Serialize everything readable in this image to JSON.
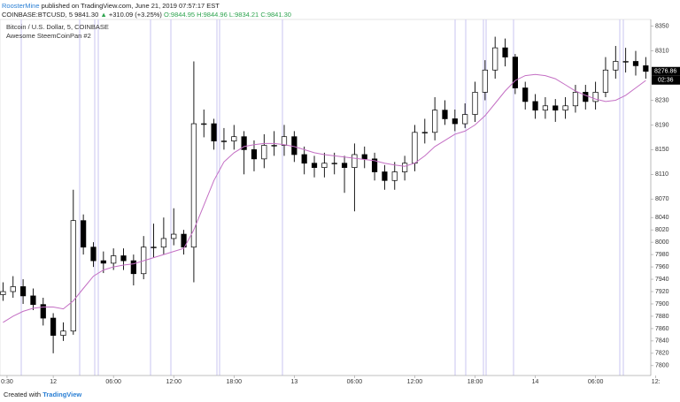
{
  "header": {
    "author": "RoosterMine",
    "published": "published on TradingView.com, June 21, 2019 07:57:17 EST",
    "symbol": "COINBASE:BTCUSD, 5",
    "last": "9841.30",
    "arrow": "▲",
    "change": "+310.09 (+3.25%)",
    "o": "O:9844.95",
    "h": "H:9844.96",
    "l": "L:9834.21",
    "c": "C:9841.30"
  },
  "chart_data": {
    "type": "candlestick",
    "title": "Bitcoin / U.S. Dollar, 5, COINBASE",
    "subtitle": "Awesome SteemCoinPan #2",
    "x": [
      -5,
      -4,
      -3,
      -2,
      -1,
      0,
      1,
      2,
      3,
      4,
      5,
      6,
      7,
      8,
      9,
      10,
      11,
      12,
      13,
      14,
      15,
      16,
      17,
      18,
      19,
      20,
      21,
      22,
      23,
      24,
      25,
      26,
      27,
      28,
      29,
      30,
      31,
      32,
      33,
      34,
      35,
      36,
      37,
      38,
      39,
      40,
      41,
      42,
      43,
      44,
      45,
      46,
      47,
      48,
      49,
      50,
      51,
      52,
      53,
      54,
      55,
      56,
      57,
      58,
      59
    ],
    "open": [
      7915,
      7920,
      7928,
      7913,
      7899,
      7877,
      7849,
      7856,
      8035,
      7992,
      7970,
      7966,
      7978,
      7970,
      7949,
      7992,
      7992,
      8006,
      8013,
      7992,
      8192,
      8192,
      8164,
      8164,
      8171,
      8150,
      8135,
      8157,
      8157,
      8171,
      8142,
      8128,
      8121,
      8128,
      8128,
      8121,
      8142,
      8135,
      8114,
      8100,
      8114,
      8128,
      8178,
      8178,
      8214,
      8200,
      8192,
      8207,
      8243,
      8279,
      8315,
      8300,
      8250,
      8228,
      8214,
      8221,
      8214,
      8221,
      8243,
      8228,
      8243,
      8279,
      8293,
      8293,
      8286
    ],
    "high": [
      7935,
      7945,
      7940,
      7925,
      7910,
      7885,
      7870,
      8085,
      8045,
      8000,
      7985,
      7990,
      7990,
      7980,
      8010,
      8030,
      8040,
      8055,
      8020,
      8293,
      8215,
      8200,
      8185,
      8190,
      8180,
      8165,
      8175,
      8180,
      8190,
      8180,
      8155,
      8140,
      8145,
      8145,
      8140,
      8160,
      8155,
      8145,
      8125,
      8130,
      8140,
      8190,
      8200,
      8235,
      8230,
      8215,
      8225,
      8260,
      8295,
      8333,
      8330,
      8305,
      8260,
      8240,
      8235,
      8232,
      8235,
      8255,
      8255,
      8260,
      8300,
      8318,
      8315,
      8310,
      8300
    ],
    "low": [
      7905,
      7910,
      7900,
      7890,
      7865,
      7820,
      7840,
      7850,
      7980,
      7960,
      7950,
      7955,
      7955,
      7930,
      7940,
      7975,
      7980,
      7995,
      7980,
      7935,
      8170,
      8150,
      8150,
      8150,
      8110,
      8115,
      8120,
      8140,
      8140,
      8130,
      8110,
      8105,
      8105,
      8110,
      8080,
      8050,
      8120,
      8100,
      8085,
      8085,
      8100,
      8115,
      8160,
      8165,
      8190,
      8180,
      8185,
      8195,
      8230,
      8265,
      8285,
      8240,
      8215,
      8200,
      8200,
      8195,
      8200,
      8210,
      8215,
      8215,
      8235,
      8265,
      8275,
      8270,
      8265
    ],
    "close": [
      7920,
      7928,
      7913,
      7899,
      7877,
      7849,
      7856,
      8035,
      7992,
      7970,
      7966,
      7978,
      7970,
      7949,
      7992,
      7992,
      8006,
      8013,
      7992,
      8192,
      8192,
      8164,
      8164,
      8171,
      8150,
      8135,
      8157,
      8157,
      8171,
      8142,
      8128,
      8121,
      8128,
      8128,
      8121,
      8142,
      8135,
      8114,
      8100,
      8114,
      8128,
      8178,
      8178,
      8214,
      8200,
      8192,
      8207,
      8243,
      8279,
      8315,
      8300,
      8250,
      8228,
      8214,
      8221,
      8214,
      8221,
      8243,
      8228,
      8243,
      8279,
      8293,
      8293,
      8286,
      8276.86
    ],
    "ma": {
      "color": "#c46fc4",
      "values": [
        7870,
        7880,
        7888,
        7893,
        7895,
        7895,
        7892,
        7905,
        7925,
        7945,
        7955,
        7960,
        7963,
        7965,
        7970,
        7975,
        7980,
        7985,
        7990,
        8020,
        8060,
        8100,
        8130,
        8145,
        8155,
        8158,
        8160,
        8160,
        8158,
        8155,
        8150,
        8145,
        8142,
        8140,
        8138,
        8136,
        8134,
        8132,
        8128,
        8125,
        8123,
        8128,
        8140,
        8155,
        8165,
        8175,
        8180,
        8190,
        8205,
        8225,
        8245,
        8262,
        8270,
        8272,
        8270,
        8265,
        8255,
        8245,
        8238,
        8232,
        8228,
        8230,
        8238,
        8250,
        8262
      ]
    },
    "up_color": "#ffffff",
    "down_color": "#000000",
    "wick_color": "#000000",
    "countdown": "02:36",
    "xlim": [
      -5.3,
      59.5
    ],
    "xticks": [
      {
        "value": -4.6,
        "label": "0:30"
      },
      {
        "value": 0,
        "label": "12"
      },
      {
        "value": 6,
        "label": "06:00"
      },
      {
        "value": 12,
        "label": "12:00"
      },
      {
        "value": 18,
        "label": "18:00"
      },
      {
        "value": 24,
        "label": "13"
      },
      {
        "value": 30,
        "label": "06:00"
      },
      {
        "value": 36,
        "label": "12:00"
      },
      {
        "value": 42,
        "label": "18:00"
      },
      {
        "value": 48,
        "label": "14"
      },
      {
        "value": 54,
        "label": "06:00"
      },
      {
        "value": 60,
        "label": "12:"
      }
    ],
    "ylim": [
      7784,
      8361
    ],
    "yticks": [
      7800,
      7820,
      7840,
      7860,
      7880,
      7900,
      7920,
      7940,
      7960,
      7980,
      8000,
      8020,
      8040,
      8070,
      8110,
      8150,
      8190,
      8230,
      8310,
      8350
    ]
  },
  "footer": {
    "created": "Created with",
    "brand": "TradingView"
  }
}
